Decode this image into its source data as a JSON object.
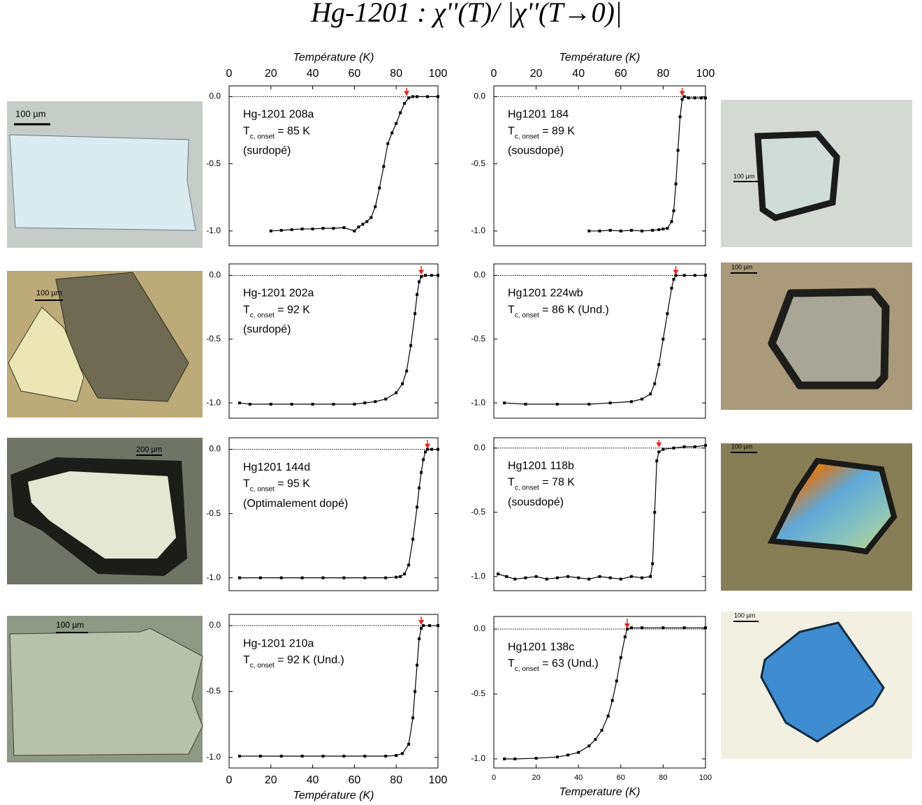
{
  "title": "Hg-1201 : χ''(T)/ |χ''(T→0)|",
  "micrographs": [
    {
      "scale": "100 µm"
    },
    {
      "scale": "100 µm"
    },
    {
      "scale": "200 µm"
    },
    {
      "scale": "100 µm"
    },
    {
      "scale": "100 µm"
    },
    {
      "scale": "100 µm"
    },
    {
      "scale": "100 µm"
    },
    {
      "scale": "100 µm"
    }
  ],
  "chart_data": [
    {
      "type": "line",
      "xlabel": "Température (K)",
      "xaxis": "top",
      "xlim": [
        0,
        100
      ],
      "xticks": [
        0,
        20,
        40,
        60,
        80,
        100
      ],
      "ylim": [
        -1.11,
        0.08
      ],
      "yticks": [
        {
          "value": 0,
          "label": "0.0"
        },
        {
          "value": -0.5,
          "label": "-0.5"
        },
        {
          "value": -1,
          "label": "-1.0"
        }
      ],
      "sample": "Hg-1201 208a",
      "tc_symbol": "T",
      "tc_sub": "c, onset",
      "tc_text": " = 85 K",
      "note": "(surdopé)",
      "onset": 85,
      "color": "#000000",
      "arrow_color": "#e8231f",
      "x": [
        20,
        25,
        30,
        35,
        40,
        45,
        50,
        55,
        60,
        62,
        64,
        66,
        68,
        70,
        72,
        74,
        76,
        78,
        80,
        82,
        84,
        86,
        88,
        90,
        95,
        100
      ],
      "values": [
        -1.0,
        -0.995,
        -0.99,
        -0.985,
        -0.985,
        -0.98,
        -0.98,
        -0.975,
        -1.0,
        -0.97,
        -0.95,
        -0.93,
        -0.9,
        -0.82,
        -0.68,
        -0.52,
        -0.35,
        -0.27,
        -0.2,
        -0.12,
        -0.05,
        -0.01,
        0.0,
        0.0,
        0.0,
        0.0
      ]
    },
    {
      "type": "line",
      "xlabel": "Température (K)",
      "xaxis": "top",
      "xlim": [
        0,
        100
      ],
      "xticks": [
        0,
        20,
        40,
        60,
        80,
        100
      ],
      "ylim": [
        -1.11,
        0.08
      ],
      "yticks": [
        {
          "value": 0,
          "label": "0.0"
        },
        {
          "value": -0.5,
          "label": "-0.5"
        },
        {
          "value": -1,
          "label": "-1.0"
        }
      ],
      "sample": "Hg1201 184",
      "tc_symbol": "T",
      "tc_sub": "c, onset",
      "tc_text": " = 89 K",
      "note": "(sousdopé)",
      "onset": 89,
      "color": "#000000",
      "arrow_color": "#e8231f",
      "x": [
        45,
        50,
        55,
        60,
        65,
        70,
        75,
        78,
        80,
        82,
        84,
        85,
        86,
        87,
        88,
        89,
        90,
        92,
        95,
        98,
        100
      ],
      "values": [
        -1.0,
        -1.0,
        -0.995,
        -1.0,
        -0.995,
        -1.0,
        -0.995,
        -0.99,
        -0.985,
        -0.98,
        -0.93,
        -0.85,
        -0.65,
        -0.4,
        -0.15,
        -0.02,
        0.0,
        -0.01,
        -0.01,
        -0.01,
        -0.01
      ]
    },
    {
      "type": "line",
      "xaxis": "none",
      "xlim": [
        0,
        100
      ],
      "ylim": [
        -1.12,
        0.09
      ],
      "yticks": [
        {
          "value": 0,
          "label": "0.0"
        },
        {
          "value": -0.5,
          "label": "-0.5"
        },
        {
          "value": -1,
          "label": "-1.0"
        }
      ],
      "sample": "Hg-1201 202a",
      "tc_symbol": "T",
      "tc_sub": "c, onset",
      "tc_text": " = 92 K",
      "note": "(surdopé)",
      "onset": 92,
      "color": "#000000",
      "arrow_color": "#e8231f",
      "x": [
        5,
        10,
        20,
        30,
        40,
        50,
        60,
        65,
        70,
        75,
        80,
        83,
        85,
        87,
        89,
        90,
        91,
        92,
        94,
        97,
        100
      ],
      "values": [
        -1.0,
        -1.01,
        -1.01,
        -1.01,
        -1.01,
        -1.01,
        -1.01,
        -1.0,
        -0.99,
        -0.97,
        -0.92,
        -0.85,
        -0.75,
        -0.55,
        -0.3,
        -0.15,
        -0.05,
        -0.01,
        0.0,
        0.0,
        0.0
      ]
    },
    {
      "type": "line",
      "xaxis": "none",
      "xlim": [
        0,
        100
      ],
      "ylim": [
        -1.12,
        0.09
      ],
      "yticks": [
        {
          "value": 0,
          "label": "0.0"
        },
        {
          "value": -0.5,
          "label": "-0.5"
        },
        {
          "value": -1,
          "label": "-1.0"
        }
      ],
      "sample": "Hg1201 224wb",
      "tc_symbol": "T",
      "tc_sub": "c, onset",
      "tc_text": " = 86 K (Und.)",
      "note": "",
      "onset": 86,
      "color": "#000000",
      "arrow_color": "#e8231f",
      "x": [
        5,
        15,
        30,
        45,
        55,
        65,
        70,
        74,
        76,
        78,
        80,
        82,
        84,
        85,
        86,
        90,
        95,
        100
      ],
      "values": [
        -1.0,
        -1.01,
        -1.01,
        -1.01,
        -1.0,
        -0.99,
        -0.97,
        -0.93,
        -0.85,
        -0.7,
        -0.5,
        -0.3,
        -0.1,
        -0.03,
        0.0,
        0.0,
        0.0,
        0.0
      ]
    },
    {
      "type": "line",
      "xaxis": "none",
      "xlim": [
        0,
        100
      ],
      "ylim": [
        -1.1,
        0.09
      ],
      "yticks": [
        {
          "value": 0,
          "label": "0.0"
        },
        {
          "value": -0.5,
          "label": "-0.5"
        },
        {
          "value": -1,
          "label": "-1.0"
        }
      ],
      "sample": "Hg1201 144d",
      "tc_symbol": "T",
      "tc_sub": "c, onset",
      "tc_text": " = 95 K",
      "note": "(Optimalement dopé)",
      "onset": 95,
      "color": "#000000",
      "arrow_color": "#e8231f",
      "x": [
        5,
        15,
        25,
        35,
        45,
        55,
        65,
        75,
        80,
        82,
        84,
        86,
        88,
        90,
        91,
        92,
        93,
        94,
        95,
        97,
        100
      ],
      "values": [
        -1.0,
        -1.0,
        -1.0,
        -1.0,
        -1.0,
        -1.0,
        -1.0,
        -1.0,
        -0.995,
        -0.99,
        -0.97,
        -0.9,
        -0.7,
        -0.45,
        -0.3,
        -0.18,
        -0.08,
        -0.02,
        0.0,
        0.0,
        0.0
      ]
    },
    {
      "type": "line",
      "xaxis": "none",
      "xlim": [
        0,
        100
      ],
      "ylim": [
        -1.11,
        0.08
      ],
      "yticks": [
        {
          "value": 0,
          "label": "0.0"
        },
        {
          "value": -0.5,
          "label": "-0.5"
        },
        {
          "value": -1,
          "label": "-1.0"
        }
      ],
      "sample": "Hg1201 118b",
      "tc_symbol": "T",
      "tc_sub": "c, onset",
      "tc_text": " = 78 K",
      "note": "(sousdopé)",
      "onset": 78,
      "color": "#000000",
      "arrow_color": "#e8231f",
      "x": [
        2,
        6,
        10,
        15,
        20,
        25,
        30,
        35,
        40,
        45,
        50,
        55,
        60,
        65,
        70,
        74,
        75,
        76,
        77,
        78,
        80,
        85,
        90,
        95,
        100
      ],
      "values": [
        -0.98,
        -1.0,
        -1.02,
        -1.01,
        -1.0,
        -1.02,
        -1.01,
        -1.0,
        -1.01,
        -1.02,
        -1.0,
        -1.01,
        -1.02,
        -1.0,
        -1.01,
        -1.0,
        -0.9,
        -0.5,
        -0.1,
        -0.03,
        -0.01,
        0.0,
        0.01,
        0.01,
        0.02
      ]
    },
    {
      "type": "line",
      "xlabel": "Température (K)",
      "xaxis": "bottom",
      "xlim": [
        0,
        100
      ],
      "xticks": [
        0,
        20,
        40,
        60,
        80,
        100
      ],
      "ylim": [
        -1.08,
        0.085
      ],
      "yticks": [
        {
          "value": 0,
          "label": "0.0"
        },
        {
          "value": -0.5,
          "label": "-0.5"
        },
        {
          "value": -1,
          "label": "-1.0"
        }
      ],
      "sample": "Hg-1201 210a",
      "tc_symbol": "T",
      "tc_sub": "c, onset",
      "tc_text": " = 92 K (Und.)",
      "note": "",
      "onset": 92,
      "color": "#000000",
      "arrow_color": "#e8231f",
      "x": [
        5,
        15,
        25,
        35,
        45,
        55,
        65,
        75,
        80,
        83,
        86,
        88,
        89,
        90,
        91,
        92,
        93,
        96,
        100
      ],
      "values": [
        -0.99,
        -0.99,
        -0.99,
        -0.99,
        -0.99,
        -0.99,
        -0.99,
        -0.99,
        -0.985,
        -0.97,
        -0.9,
        -0.7,
        -0.5,
        -0.3,
        -0.1,
        -0.02,
        0.0,
        0.0,
        0.0
      ]
    },
    {
      "type": "line",
      "xlabel": "Temperature (K)",
      "xaxis": "bottom",
      "xlim": [
        0,
        100
      ],
      "xticks": [
        0,
        20,
        40,
        60,
        80,
        100
      ],
      "ylim": [
        -1.07,
        0.097
      ],
      "yticks": [
        {
          "value": 0,
          "label": "0.0"
        },
        {
          "value": -0.5,
          "label": "-0.5"
        },
        {
          "value": -1,
          "label": "-1.0"
        }
      ],
      "sample": "Hg1201 138c",
      "tc_symbol": "T",
      "tc_sub": "c, onset",
      "tc_text": " = 63 (Und.)",
      "note": "",
      "onset": 63,
      "color": "#000000",
      "arrow_color": "#e8231f",
      "x": [
        5,
        10,
        20,
        30,
        35,
        40,
        45,
        48,
        51,
        54,
        56,
        58,
        60,
        62,
        63,
        65,
        70,
        80,
        90,
        100
      ],
      "values": [
        -1.0,
        -1.0,
        -0.995,
        -0.985,
        -0.97,
        -0.95,
        -0.9,
        -0.85,
        -0.78,
        -0.67,
        -0.55,
        -0.4,
        -0.22,
        -0.06,
        0.0,
        0.01,
        0.01,
        0.01,
        0.01,
        0.01
      ]
    }
  ]
}
